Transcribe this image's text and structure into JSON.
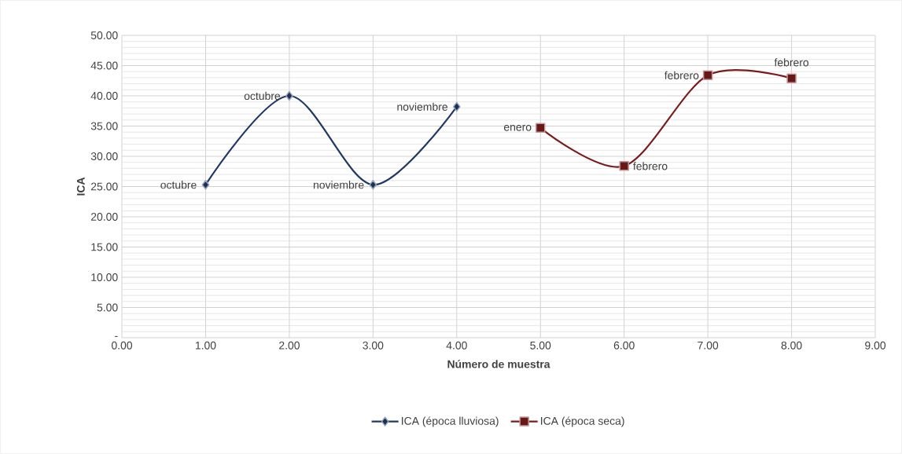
{
  "chart_data": {
    "type": "line",
    "xlabel": "Número de muestra",
    "ylabel": "ICA",
    "series": [
      {
        "name": "ICA (época lluviosa)",
        "color": "#1f3864",
        "marker": "diamond",
        "x": [
          1,
          2,
          3,
          4
        ],
        "values": [
          25.3,
          40.0,
          25.3,
          38.2
        ]
      },
      {
        "name": "ICA (época seca)",
        "color": "#7b1c1c",
        "marker": "square",
        "x": [
          5,
          6,
          7,
          8
        ],
        "values": [
          34.7,
          28.4,
          43.4,
          42.9
        ]
      }
    ],
    "xlim": [
      0,
      9
    ],
    "ylim": [
      0,
      50
    ],
    "xticks": [
      {
        "value": 0,
        "label": "0.00"
      },
      {
        "value": 1,
        "label": "1.00"
      },
      {
        "value": 2,
        "label": "2.00"
      },
      {
        "value": 3,
        "label": "3.00"
      },
      {
        "value": 4,
        "label": "4.00"
      },
      {
        "value": 5,
        "label": "5.00"
      },
      {
        "value": 6,
        "label": "6.00"
      },
      {
        "value": 7,
        "label": "7.00"
      },
      {
        "value": 8,
        "label": "8.00"
      },
      {
        "value": 9,
        "label": "9.00"
      }
    ],
    "yticks": [
      {
        "value": 0,
        "label": "-"
      },
      {
        "value": 5,
        "label": "5.00"
      },
      {
        "value": 10,
        "label": "10.00"
      },
      {
        "value": 15,
        "label": "15.00"
      },
      {
        "value": 20,
        "label": "20.00"
      },
      {
        "value": 25,
        "label": "25.00"
      },
      {
        "value": 30,
        "label": "30.00"
      },
      {
        "value": 35,
        "label": "35.00"
      },
      {
        "value": 40,
        "label": "40.00"
      },
      {
        "value": 45,
        "label": "45.00"
      },
      {
        "value": 50,
        "label": "50.00"
      }
    ],
    "annotations": [
      {
        "text": "octubre",
        "x": 1,
        "y": 25.3
      },
      {
        "text": "octubre",
        "x": 2,
        "y": 40.0
      },
      {
        "text": "noviembre",
        "x": 3,
        "y": 25.3
      },
      {
        "text": "noviembre",
        "x": 4,
        "y": 38.2
      },
      {
        "text": "enero",
        "x": 5,
        "y": 34.7
      },
      {
        "text": "febrero",
        "x": 6,
        "y": 28.4
      },
      {
        "text": "febrero",
        "x": 7,
        "y": 43.4
      },
      {
        "text": "febrero",
        "x": 8,
        "y": 42.9
      }
    ],
    "grid": true,
    "legend": "bottom",
    "line_style": "solid"
  }
}
